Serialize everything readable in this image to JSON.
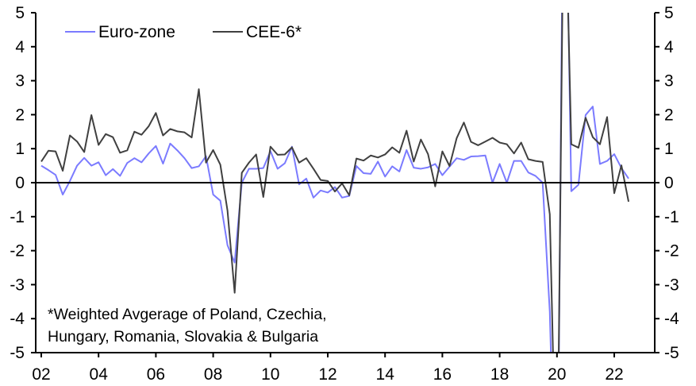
{
  "chart_data": {
    "type": "line",
    "title": "",
    "xlabel": "",
    "ylabel": "",
    "ylim": [
      -5,
      5
    ],
    "yticks": [
      -5,
      -4,
      -3,
      -2,
      -1,
      0,
      1,
      2,
      3,
      4,
      5
    ],
    "xlim": [
      2001.8,
      2023.5
    ],
    "x_start": 2002.0,
    "x_step": 0.25,
    "xticks": [
      {
        "value": 2002,
        "label": "02"
      },
      {
        "value": 2004,
        "label": "04"
      },
      {
        "value": 2006,
        "label": "06"
      },
      {
        "value": 2008,
        "label": "08"
      },
      {
        "value": 2010,
        "label": "10"
      },
      {
        "value": 2012,
        "label": "12"
      },
      {
        "value": 2014,
        "label": "14"
      },
      {
        "value": 2016,
        "label": "16"
      },
      {
        "value": 2018,
        "label": "18"
      },
      {
        "value": 2020,
        "label": "20"
      },
      {
        "value": 2022,
        "label": "22"
      }
    ],
    "grid": false,
    "legend_position": "top-left",
    "series": [
      {
        "name": "Euro-zone",
        "color": "#7b7bff",
        "values": [
          0.5,
          0.37,
          0.23,
          -0.35,
          0.05,
          0.5,
          0.73,
          0.5,
          0.6,
          0.22,
          0.4,
          0.2,
          0.58,
          0.72,
          0.6,
          0.86,
          1.08,
          0.56,
          1.15,
          0.95,
          0.72,
          0.43,
          0.48,
          0.78,
          -0.35,
          -0.53,
          -1.84,
          -2.35,
          0.0,
          0.41,
          0.41,
          0.43,
          0.93,
          0.41,
          0.57,
          1.06,
          -0.05,
          0.12,
          -0.44,
          -0.23,
          -0.29,
          -0.13,
          -0.44,
          -0.39,
          0.49,
          0.28,
          0.26,
          0.62,
          0.18,
          0.48,
          0.33,
          0.96,
          0.44,
          0.41,
          0.45,
          0.55,
          0.22,
          0.47,
          0.72,
          0.67,
          0.77,
          0.78,
          0.8,
          0.0,
          0.55,
          0.0,
          0.64,
          0.64,
          0.3,
          0.2,
          0.0,
          -3.8,
          -11.6,
          12.4,
          -0.25,
          -0.06,
          1.99,
          2.24,
          0.55,
          0.64,
          0.84,
          0.43,
          0.12
        ]
      },
      {
        "name": "CEE-6*",
        "color": "#404040",
        "values": [
          0.62,
          0.94,
          0.92,
          0.35,
          1.39,
          1.21,
          0.9,
          1.99,
          1.11,
          1.43,
          1.34,
          0.88,
          0.95,
          1.5,
          1.41,
          1.66,
          2.05,
          1.39,
          1.58,
          1.51,
          1.48,
          1.33,
          2.75,
          0.59,
          0.96,
          0.53,
          -0.82,
          -3.24,
          0.29,
          0.59,
          0.83,
          -0.42,
          1.06,
          0.82,
          0.83,
          1.04,
          0.59,
          0.72,
          0.41,
          0.08,
          0.05,
          -0.26,
          -0.02,
          -0.37,
          0.71,
          0.65,
          0.8,
          0.74,
          0.83,
          1.04,
          0.88,
          1.53,
          0.62,
          1.27,
          0.84,
          -0.11,
          0.92,
          0.49,
          1.31,
          1.77,
          1.2,
          1.1,
          1.21,
          1.32,
          1.18,
          1.13,
          0.86,
          1.18,
          0.69,
          0.64,
          0.61,
          -0.93,
          -10.0,
          10.0,
          1.13,
          1.03,
          1.91,
          1.34,
          1.13,
          1.93,
          -0.31,
          0.51,
          -0.56
        ]
      }
    ],
    "annotation": [
      "*Weighted Avgerage of Poland, Czechia,",
      "Hungary, Romania, Slovakia & Bulgaria"
    ]
  }
}
